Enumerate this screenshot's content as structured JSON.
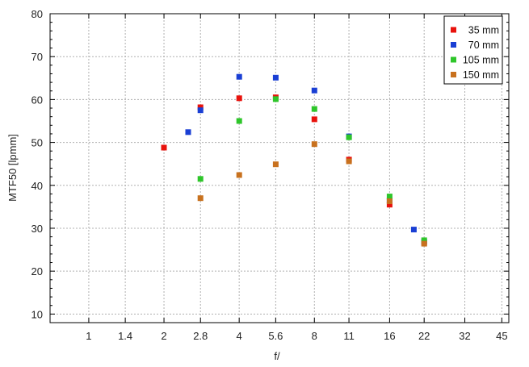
{
  "chart_data": {
    "type": "scatter",
    "title": "",
    "xlabel": "f/",
    "ylabel": "MTF50 [lpmm]",
    "x_scale": "log2",
    "xlim": [
      0.7,
      48
    ],
    "ylim": [
      8,
      80
    ],
    "x_ticks": [
      1,
      1.4,
      2,
      2.8,
      4,
      5.6,
      8,
      11,
      16,
      22,
      32,
      45
    ],
    "x_tick_labels": [
      "1",
      "1.4",
      "2",
      "2.8",
      "4",
      "5.6",
      "8",
      "11",
      "16",
      "22",
      "32",
      "45"
    ],
    "y_ticks": [
      10,
      20,
      30,
      40,
      50,
      60,
      70,
      80
    ],
    "y_tick_labels": [
      "10",
      "20",
      "30",
      "40",
      "50",
      "60",
      "70",
      "80"
    ],
    "grid": true,
    "legend_position": "top-right",
    "series": [
      {
        "name": "35 mm",
        "color": "#e8120c",
        "points": [
          [
            2,
            48.8
          ],
          [
            2.8,
            58.2
          ],
          [
            4,
            60.3
          ],
          [
            5.6,
            60.5
          ],
          [
            8,
            55.4
          ],
          [
            11,
            46.0
          ],
          [
            16,
            35.5
          ],
          [
            22,
            26.6
          ]
        ]
      },
      {
        "name": "70 mm",
        "color": "#1a3fd4",
        "points": [
          [
            2.5,
            52.4
          ],
          [
            2.8,
            57.5
          ],
          [
            4,
            65.3
          ],
          [
            5.6,
            65.1
          ],
          [
            8,
            62.1
          ],
          [
            11,
            51.4
          ],
          [
            16,
            36.5
          ],
          [
            20,
            29.7
          ],
          [
            22,
            26.9
          ]
        ]
      },
      {
        "name": "105 mm",
        "color": "#2ec62a",
        "points": [
          [
            2.8,
            41.5
          ],
          [
            4,
            55.0
          ],
          [
            5.6,
            60.1
          ],
          [
            8,
            57.8
          ],
          [
            11,
            51.2
          ],
          [
            16,
            37.4
          ],
          [
            22,
            27.2
          ]
        ]
      },
      {
        "name": "150 mm",
        "color": "#c8711e",
        "points": [
          [
            2.8,
            37.0
          ],
          [
            4,
            42.4
          ],
          [
            5.6,
            44.9
          ],
          [
            8,
            49.6
          ],
          [
            11,
            45.6
          ],
          [
            16,
            36.3
          ],
          [
            22,
            26.4
          ]
        ]
      }
    ]
  }
}
